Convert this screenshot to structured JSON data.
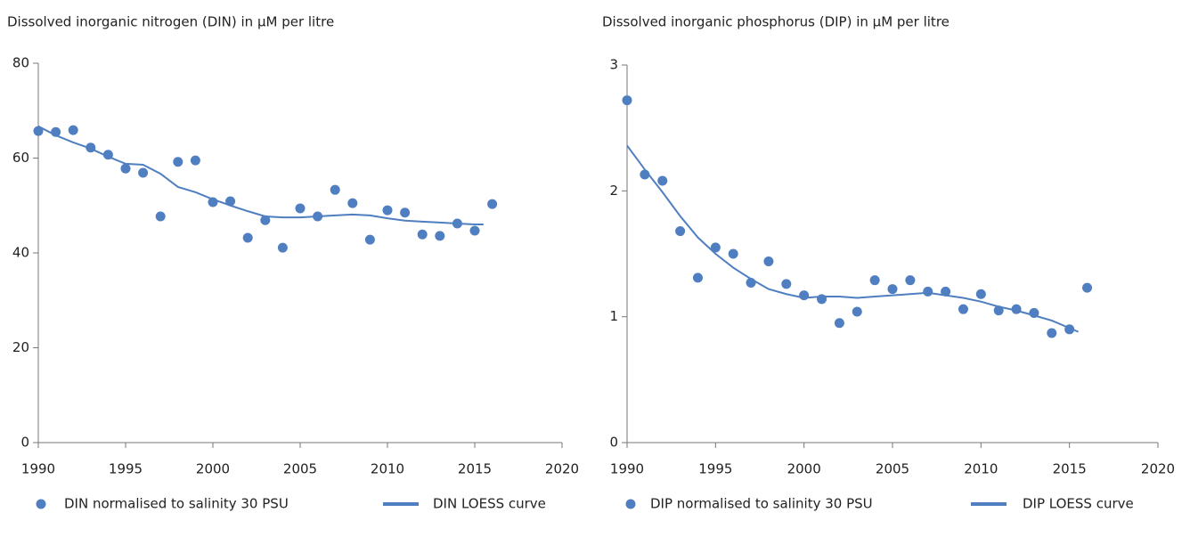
{
  "chart_data": [
    {
      "type": "scatter",
      "title": "Dissolved inorganic nitrogen (DIN) in µM per litre",
      "xlim": [
        1990,
        2020
      ],
      "xticks": [
        1990,
        1995,
        2000,
        2005,
        2010,
        2015,
        2020
      ],
      "ylim": [
        0,
        80
      ],
      "yticks": [
        0,
        20,
        40,
        60,
        80
      ],
      "series": [
        {
          "name": "DIN normalised to salinity 30 PSU",
          "mark": "point",
          "color": "#4f7fc0",
          "x": [
            1990,
            1991,
            1992,
            1993,
            1994,
            1995,
            1996,
            1997,
            1998,
            1999,
            2000,
            2001,
            2002,
            2003,
            2004,
            2005,
            2006,
            2007,
            2008,
            2009,
            2010,
            2011,
            2012,
            2013,
            2014,
            2015,
            2016
          ],
          "values": [
            65.7,
            65.5,
            65.9,
            62.2,
            60.7,
            57.8,
            56.9,
            47.7,
            59.2,
            59.5,
            50.7,
            50.9,
            43.2,
            46.9,
            41.1,
            49.4,
            47.7,
            53.3,
            50.5,
            42.8,
            49.0,
            48.5,
            43.9,
            43.6,
            46.2,
            44.7,
            50.3
          ]
        },
        {
          "name": "DIN LOESS curve",
          "mark": "line",
          "color": "#4f7fc0",
          "x": [
            1990,
            1991,
            1992,
            1993,
            1994,
            1995,
            1996,
            1997,
            1998,
            1999,
            2000,
            2001,
            2002,
            2003,
            2004,
            2005,
            2006,
            2007,
            2008,
            2009,
            2010,
            2011,
            2012,
            2013,
            2014,
            2015,
            2015.5
          ],
          "values": [
            66.7,
            64.8,
            63.3,
            62.0,
            60.3,
            58.8,
            58.6,
            56.7,
            53.9,
            52.8,
            51.3,
            50.0,
            48.8,
            47.7,
            47.5,
            47.5,
            47.7,
            47.9,
            48.1,
            47.9,
            47.3,
            46.8,
            46.6,
            46.4,
            46.2,
            46.0,
            46.0
          ]
        }
      ]
    },
    {
      "type": "scatter",
      "title": "Dissolved inorganic phosphorus (DIP) in µM per litre",
      "xlim": [
        1990,
        2020
      ],
      "xticks": [
        1990,
        1995,
        2000,
        2005,
        2010,
        2015,
        2020
      ],
      "ylim": [
        0,
        3
      ],
      "yticks": [
        0,
        1,
        2,
        3
      ],
      "series": [
        {
          "name": "DIP normalised to salinity 30 PSU",
          "mark": "point",
          "color": "#4f7fc0",
          "x": [
            1990,
            1991,
            1992,
            1993,
            1994,
            1995,
            1996,
            1997,
            1998,
            1999,
            2000,
            2001,
            2002,
            2003,
            2004,
            2005,
            2006,
            2007,
            2008,
            2009,
            2010,
            2011,
            2012,
            2013,
            2014,
            2015,
            2016
          ],
          "values": [
            2.72,
            2.13,
            2.08,
            1.68,
            1.31,
            1.55,
            1.5,
            1.27,
            1.44,
            1.26,
            1.17,
            1.14,
            0.95,
            1.04,
            1.29,
            1.22,
            1.29,
            1.2,
            1.2,
            1.06,
            1.18,
            1.05,
            1.06,
            1.03,
            0.87,
            0.9,
            1.23
          ]
        },
        {
          "name": "DIP LOESS curve",
          "mark": "line",
          "color": "#4f7fc0",
          "x": [
            1990,
            1991,
            1992,
            1993,
            1994,
            1995,
            1996,
            1997,
            1998,
            1999,
            2000,
            2001,
            2002,
            2003,
            2004,
            2005,
            2006,
            2007,
            2008,
            2009,
            2010,
            2011,
            2012,
            2013,
            2014,
            2015,
            2015.5
          ],
          "values": [
            2.36,
            2.17,
            1.99,
            1.8,
            1.63,
            1.5,
            1.39,
            1.3,
            1.22,
            1.18,
            1.15,
            1.16,
            1.16,
            1.15,
            1.16,
            1.17,
            1.18,
            1.19,
            1.17,
            1.15,
            1.12,
            1.08,
            1.05,
            1.01,
            0.97,
            0.91,
            0.88
          ]
        }
      ]
    }
  ]
}
